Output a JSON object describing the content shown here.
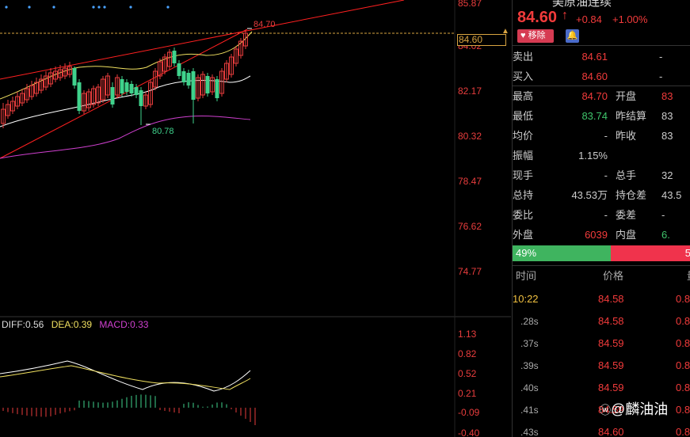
{
  "chart": {
    "y_axis_labels": [
      "85.87",
      "84.02",
      "82.17",
      "80.32",
      "78.47",
      "76.62",
      "74.77"
    ],
    "current_price_tag": "84.60",
    "high_marker": "84.70",
    "low_marker": "80.78",
    "macd_axis_labels": [
      "1.13",
      "0.82",
      "0.52",
      "0.21",
      "-0.09",
      "-0.40"
    ],
    "macd_legend": {
      "diff": "DIFF:0.56",
      "dea": "DEA:0.39",
      "macd": "MACD:0.33"
    },
    "colors": {
      "up": "#e83d3d",
      "down": "#3fd28c",
      "ma_white": "#ffffff",
      "ma_yellow": "#f0e060",
      "ma_magenta": "#d040d0",
      "trendline": "#ff2020"
    }
  },
  "quote": {
    "title": "美原油连续",
    "price": "84.60",
    "change": "+0.84",
    "change_pct": "+1.00%",
    "remove_label": "移除",
    "alert_icon": "bell-icon",
    "ask": {
      "label": "卖出",
      "price": "84.61",
      "vol": "-"
    },
    "bid": {
      "label": "买入",
      "price": "84.60",
      "vol": "-"
    },
    "stats": [
      {
        "k1": "最高",
        "v1": "84.70",
        "c1": "red",
        "k2": "开盘",
        "v2": "83",
        "c2": "red"
      },
      {
        "k1": "最低",
        "v1": "83.74",
        "c1": "green",
        "k2": "昨结算",
        "v2": "83",
        "c2": "white"
      },
      {
        "k1": "均价",
        "v1": "-",
        "c1": "white",
        "k2": "昨收",
        "v2": "83",
        "c2": "white"
      },
      {
        "k1": "振幅",
        "v1": "1.15%",
        "c1": "white",
        "k2": "",
        "v2": "",
        "c2": "white"
      },
      {
        "k1": "现手",
        "v1": "-",
        "c1": "white",
        "k2": "总手",
        "v2": "32",
        "c2": "white"
      },
      {
        "k1": "总持",
        "v1": "43.53万",
        "c1": "white",
        "k2": "持仓差",
        "v2": "43.5",
        "c2": "white"
      },
      {
        "k1": "委比",
        "v1": "-",
        "c1": "white",
        "k2": "委差",
        "v2": "-",
        "c2": "white"
      },
      {
        "k1": "外盘",
        "v1": "6039",
        "c1": "red",
        "k2": "内盘",
        "v2": "6.",
        "c2": "green"
      }
    ],
    "buy_ratio": "49%",
    "sell_ratio": "5",
    "ticks_header": {
      "time": "时间",
      "price": "价格",
      "vol": "量"
    },
    "ticks": [
      {
        "time": "10:22",
        "price": "84.58",
        "vol": "0.8",
        "main": true
      },
      {
        "time": ".28s",
        "price": "84.58",
        "vol": "0.8",
        "main": false
      },
      {
        "time": ".37s",
        "price": "84.59",
        "vol": "0.8",
        "main": false
      },
      {
        "time": ".39s",
        "price": "84.59",
        "vol": "0.8",
        "main": false
      },
      {
        "time": ".40s",
        "price": "84.59",
        "vol": "0.8",
        "main": false
      },
      {
        "time": ".41s",
        "price": "84.59",
        "vol": "0.8",
        "main": false
      },
      {
        "time": ".43s",
        "price": "84.60",
        "vol": "0.8",
        "main": false
      }
    ]
  },
  "watermark": "@麟油油"
}
